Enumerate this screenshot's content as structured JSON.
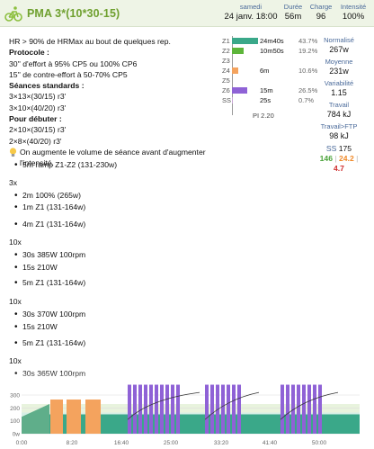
{
  "header": {
    "title": "PMA 3*(10*30-15)",
    "date": {
      "label": "samedi",
      "value": "24 janv. 18:00"
    },
    "duration": {
      "label": "Durée",
      "value": "56m"
    },
    "load": {
      "label": "Charge",
      "value": "96"
    },
    "intensity": {
      "label": "Intensité",
      "value": "100%"
    }
  },
  "description": {
    "line1": "HR > 90% de HRMax au bout de quelques rep.",
    "protocol_title": "Protocole :",
    "protocol": [
      "30'' d'effort à 95% CP5 ou 100% CP6",
      "15'' de contre-effort à 50-70% CP5"
    ],
    "standard_title": "Séances standards :",
    "standard": [
      "3×13×(30/15) r3'",
      "3×10×(40/20) r3'"
    ],
    "beginner_title": "Pour débuter :",
    "beginner": [
      "2×10×(30/15) r3'",
      "2×8×(40/20) r3'"
    ],
    "tip": "On augmente le volume de séance avant d'augmenter l'intensité."
  },
  "zones": [
    {
      "name": "Z1",
      "time": "24m40s",
      "pct": "43.7%",
      "color": "#3aa889",
      "fill": 0.437
    },
    {
      "name": "Z2",
      "time": "10m50s",
      "pct": "19.2%",
      "color": "#5db53a",
      "fill": 0.192
    },
    {
      "name": "Z3",
      "time": "",
      "pct": "",
      "color": "#e7c94a",
      "fill": 0
    },
    {
      "name": "Z4",
      "time": "6m",
      "pct": "10.6%",
      "color": "#f4a35e",
      "fill": 0.106
    },
    {
      "name": "Z5",
      "time": "",
      "pct": "",
      "color": "#e56a5a",
      "fill": 0
    },
    {
      "name": "Z6",
      "time": "15m",
      "pct": "26.5%",
      "color": "#8f62d6",
      "fill": 0.265
    },
    {
      "name": "SS",
      "time": "25s",
      "pct": "0.7%",
      "color": "#c9a6d8",
      "fill": 0.007
    }
  ],
  "pi": "PI 2.20",
  "stats": [
    {
      "label": "Normalisé",
      "value": "267w"
    },
    {
      "label": "Moyenne",
      "value": "231w"
    },
    {
      "label": "Variabilité",
      "value": "1.15"
    },
    {
      "label": "Travail",
      "value": "784 kJ"
    },
    {
      "label": "Travail>FTP",
      "value": "98 kJ"
    }
  ],
  "ss": {
    "label": "SS",
    "value": "175",
    "green": "146",
    "orange": "24.2",
    "red": "4.7"
  },
  "steps": [
    {
      "text": "5m ramp Z1-Z2 (131-230w)",
      "bullet": true
    },
    {
      "text": "3x",
      "bullet": false
    },
    {
      "text": "2m 100% (265w)",
      "bullet": true
    },
    {
      "text": "1m Z1 (131-164w)",
      "bullet": true
    },
    {
      "text": "4m Z1 (131-164w)",
      "bullet": true
    },
    {
      "text": "10x",
      "bullet": false
    },
    {
      "text": "30s 385W 100rpm",
      "bullet": true
    },
    {
      "text": "15s 210W",
      "bullet": true
    },
    {
      "text": "5m Z1 (131-164w)",
      "bullet": true
    },
    {
      "text": "10x",
      "bullet": false
    },
    {
      "text": "30s 370W 100rpm",
      "bullet": true
    },
    {
      "text": "15s 210W",
      "bullet": true
    },
    {
      "text": "5m Z1 (131-164w)",
      "bullet": true
    },
    {
      "text": "10x",
      "bullet": false
    },
    {
      "text": "30s 365W 100rpm",
      "bullet": true
    }
  ],
  "chart": {
    "y_ticks": [
      "300",
      "200",
      "100",
      "0w"
    ],
    "x_ticks": [
      "0:00",
      "8:20",
      "16:40",
      "25:00",
      "33:20",
      "41:40",
      "50:00"
    ]
  }
}
